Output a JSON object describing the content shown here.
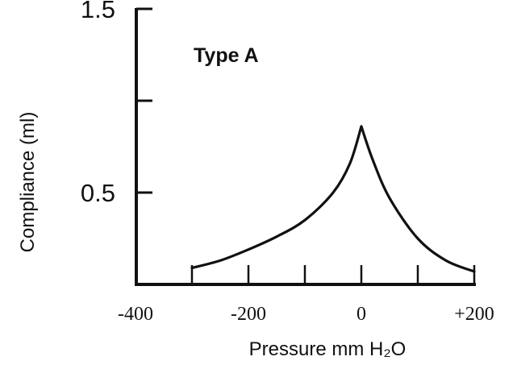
{
  "chart_data": {
    "type": "line",
    "annotation": "Type A",
    "xlabel": "Pressure mm H₂O",
    "ylabel": "Compliance (ml)",
    "xlim": [
      -400,
      200
    ],
    "ylim": [
      0,
      1.5
    ],
    "x_tick_values": [
      -400,
      -200,
      0,
      200
    ],
    "x_tick_labels": [
      "-400",
      "-200",
      "0",
      "+200"
    ],
    "x_tick_marks": [
      -300,
      -200,
      -100,
      0,
      100,
      200
    ],
    "y_tick_values": [
      0.5,
      1.5
    ],
    "y_tick_labels": [
      "0.5",
      "1.5"
    ],
    "y_tick_marks": [
      0.5,
      1.0,
      1.5
    ],
    "grid": false,
    "series": [
      {
        "x": [
          -300,
          -250,
          -200,
          -150,
          -100,
          -50,
          -20,
          0,
          20,
          50,
          100,
          150,
          200
        ],
        "y": [
          0.09,
          0.13,
          0.19,
          0.26,
          0.35,
          0.5,
          0.66,
          0.86,
          0.68,
          0.47,
          0.25,
          0.13,
          0.07
        ]
      }
    ]
  }
}
